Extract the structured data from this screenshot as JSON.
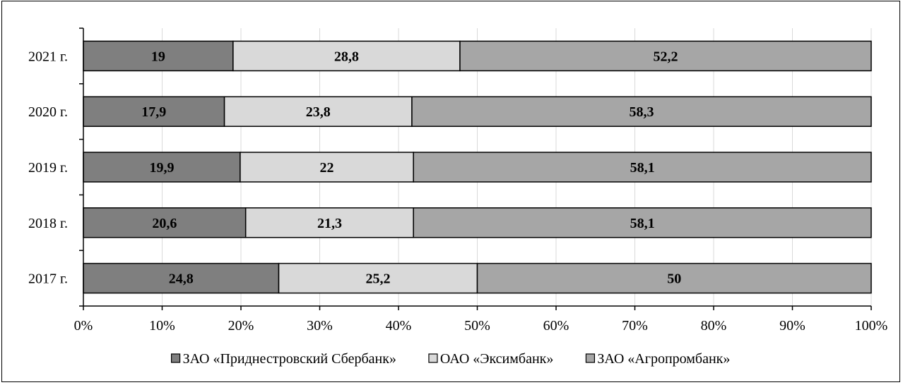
{
  "chart_data": {
    "type": "bar",
    "orientation": "horizontal",
    "stacked": "percent",
    "categories": [
      "2021 г.",
      "2020 г.",
      "2019 г.",
      "2018 г.",
      "2017 г."
    ],
    "series": [
      {
        "name": "ЗАО «Приднестровский Сбербанк»",
        "color": "#7f7f7f",
        "values": [
          19,
          17.9,
          19.9,
          20.6,
          24.8
        ],
        "labels": [
          "19",
          "17,9",
          "19,9",
          "20,6",
          "24,8"
        ]
      },
      {
        "name": "ОАО «Эксимбанк»",
        "color": "#d9d9d9",
        "values": [
          28.8,
          23.8,
          22,
          21.3,
          25.2
        ],
        "labels": [
          "28,8",
          "23,8",
          "22",
          "21,3",
          "25,2"
        ]
      },
      {
        "name": "ЗАО «Агропромбанк»",
        "color": "#a6a6a6",
        "values": [
          52.2,
          58.3,
          58.1,
          58.1,
          50
        ],
        "labels": [
          "52,2",
          "58,3",
          "58,1",
          "58,1",
          "50"
        ]
      }
    ],
    "xlim": [
      0,
      100
    ],
    "xticks": [
      "0%",
      "10%",
      "20%",
      "30%",
      "40%",
      "50%",
      "60%",
      "70%",
      "80%",
      "90%",
      "100%"
    ],
    "grid": "vertical",
    "legend": "bottom",
    "title": "",
    "xlabel": "",
    "ylabel": ""
  }
}
